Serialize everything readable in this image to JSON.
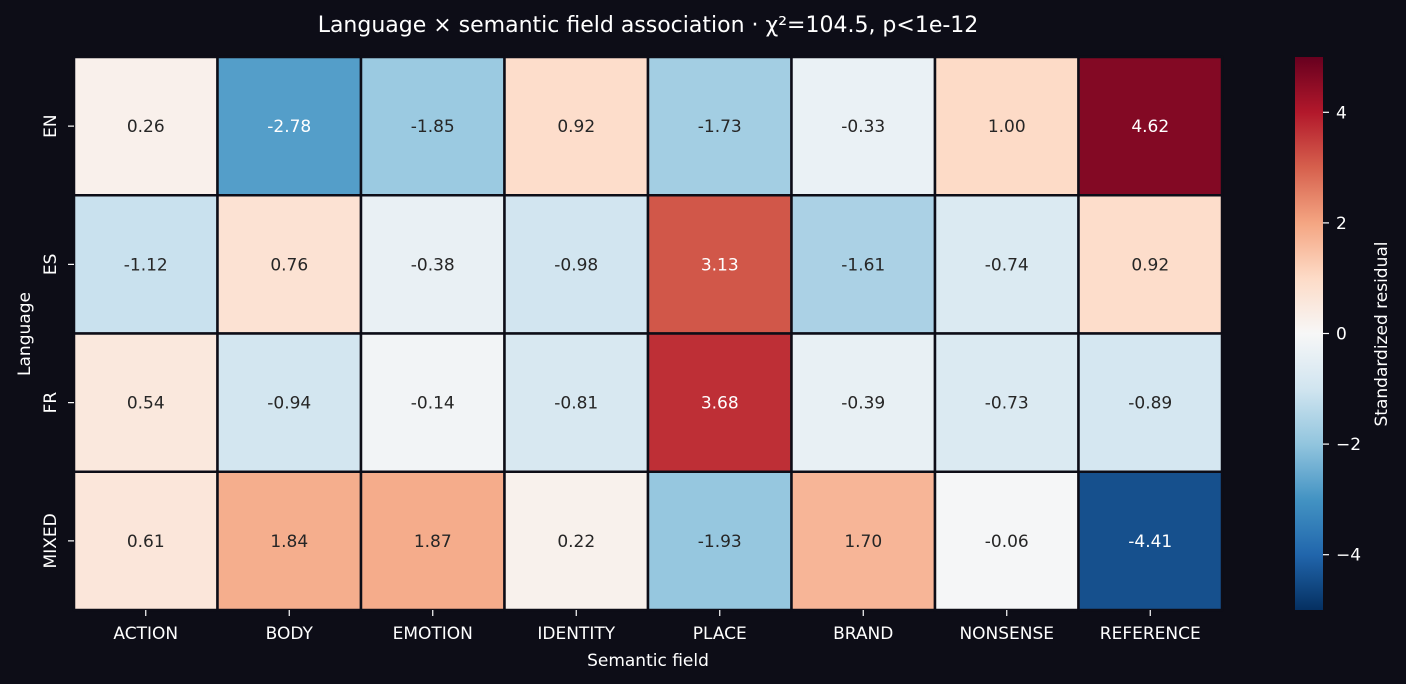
{
  "chart_data": {
    "type": "heatmap",
    "title": "Language × semantic field association  ·  χ²=104.5, p<1e-12",
    "xlabel": "Semantic field",
    "ylabel": "Language",
    "x_categories": [
      "ACTION",
      "BODY",
      "EMOTION",
      "IDENTITY",
      "PLACE",
      "BRAND",
      "NONSENSE",
      "REFERENCE"
    ],
    "y_categories": [
      "EN",
      "ES",
      "FR",
      "MIXED"
    ],
    "values": [
      [
        0.26,
        -2.78,
        -1.85,
        0.92,
        -1.73,
        -0.33,
        1.0,
        4.62
      ],
      [
        -1.12,
        0.76,
        -0.38,
        -0.98,
        3.13,
        -1.61,
        -0.74,
        0.92
      ],
      [
        0.54,
        -0.94,
        -0.14,
        -0.81,
        3.68,
        -0.39,
        -0.73,
        -0.89
      ],
      [
        0.61,
        1.84,
        1.87,
        0.22,
        -1.93,
        1.7,
        -0.06,
        -4.41
      ]
    ],
    "colorbar": {
      "label": "Standardized residual",
      "range": [
        -5,
        5
      ],
      "ticks": [
        -4,
        -2,
        0,
        2,
        4
      ],
      "colormap": "RdBu_r"
    },
    "colors": {
      "background": "#0d0d17",
      "grid_line": "#0d0d17",
      "text": "#ffffff",
      "cell_text_dark": "#262626",
      "cell_text_light": "#ffffff"
    }
  }
}
